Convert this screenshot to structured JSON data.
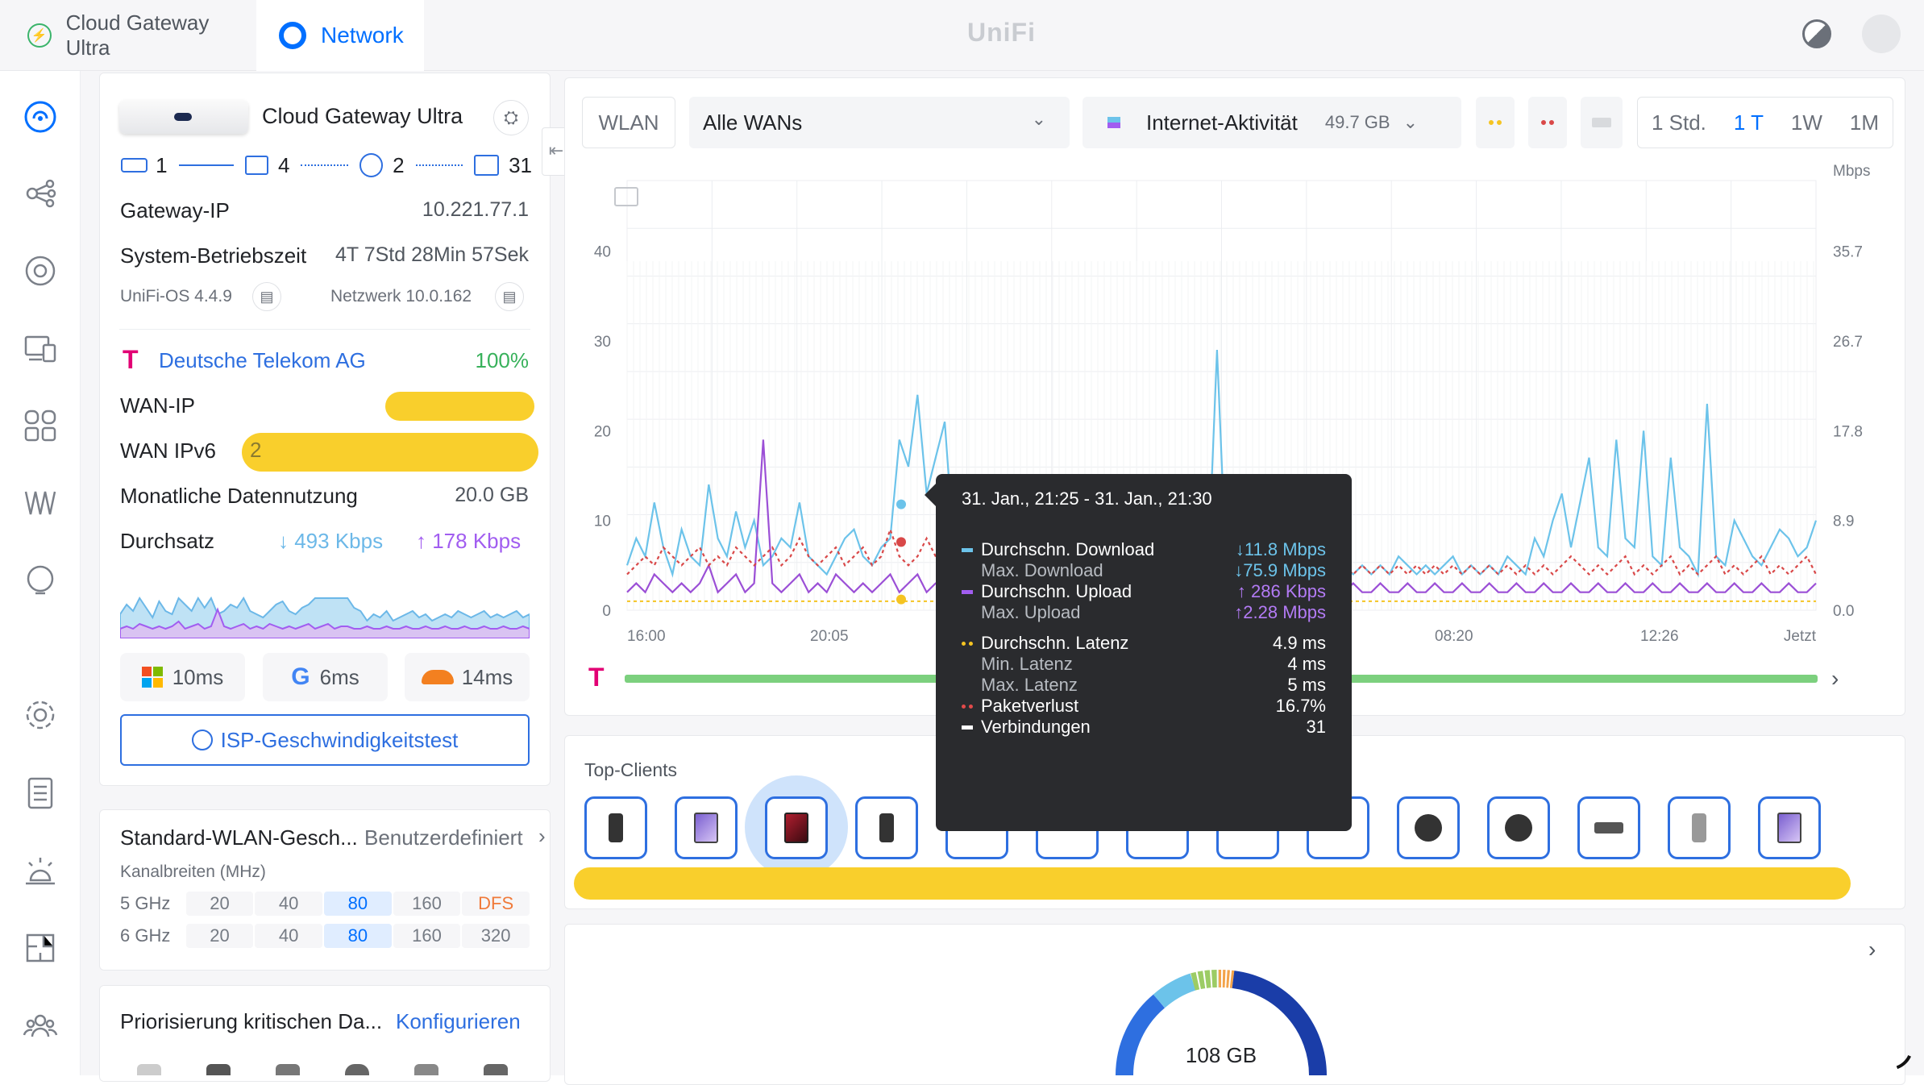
{
  "tabs": {
    "gateway": "Cloud Gateway Ultra",
    "network": "Network"
  },
  "logo": "UniFi",
  "device": {
    "name": "Cloud Gateway Ultra",
    "counts": {
      "wan": "1",
      "switches": "4",
      "aps": "2",
      "clients": "31"
    }
  },
  "info": {
    "gateway_ip_label": "Gateway-IP",
    "gateway_ip": "10.221.77.1",
    "uptime_label": "System-Betriebszeit",
    "uptime": "4T 7Std 28Min 57Sek",
    "os": "UniFi-OS 4.4.9",
    "network_version": "Netzwerk 10.0.162",
    "isp": "Deutsche Telekom AG",
    "isp_pct": "100%",
    "wan_ip_label": "WAN-IP",
    "wan_ipv6_label": "WAN IPv6",
    "wan_ipv6_partial": "2",
    "monthly_label": "Monatliche Datennutzung",
    "monthly": "20.0 GB",
    "throughput_label": "Durchsatz",
    "down": "↓ 493 Kbps",
    "up": "↑ 178 Kbps",
    "lat_ms": "10ms",
    "lat_google": "6ms",
    "lat_cf": "14ms",
    "speedtest": "ISP-Geschwindigkeitstest"
  },
  "wlan": {
    "title": "Standard-WLAN-Gesch...",
    "mode": "Benutzerdefiniert",
    "sub": "Kanalbreiten (MHz)",
    "rows": [
      {
        "band": "5 GHz",
        "cells": [
          "20",
          "40",
          "80",
          "160",
          "DFS"
        ],
        "active": 2
      },
      {
        "band": "6 GHz",
        "cells": [
          "20",
          "40",
          "80",
          "160",
          "320"
        ],
        "active": 2
      }
    ]
  },
  "prio": {
    "title": "Priorisierung kritischen Da...",
    "action": "Konfigurieren"
  },
  "toolbar": {
    "wlan": "WLAN",
    "wans": "Alle WANs",
    "activity": "Internet-Aktivität",
    "activity_total": "49.7 GB",
    "ranges": [
      "1 Std.",
      "1 T",
      "1W",
      "1M"
    ],
    "active_range": 1
  },
  "chart_data": {
    "type": "line",
    "title": "",
    "ylabel_right": "Mbps",
    "yticks_left": [
      "40",
      "30",
      "20",
      "10",
      "0"
    ],
    "yticks_right": [
      "35.7",
      "26.7",
      "17.8",
      "8.9",
      "0.0"
    ],
    "xticks": [
      "16:00",
      "20:05",
      "08:20",
      "12:26",
      "Jetzt"
    ],
    "ylim_left": [
      0,
      45
    ],
    "series": [
      {
        "name": "Durchschn. Download",
        "color": "#6cc3ea",
        "values": [
          5,
          8,
          6,
          12,
          7,
          4,
          9,
          6,
          5,
          14,
          8,
          6,
          11,
          7,
          10,
          5,
          6,
          8,
          7,
          12,
          6,
          5,
          4,
          6,
          8,
          9,
          6,
          5,
          7,
          8,
          19,
          16,
          24,
          13,
          17,
          21,
          7,
          6,
          3,
          5,
          4,
          6,
          3,
          4,
          5,
          6,
          4,
          5,
          3,
          4,
          5,
          4,
          6,
          5,
          4,
          5,
          6,
          4,
          5,
          4,
          5,
          6,
          4,
          5,
          4,
          29,
          5,
          4,
          6,
          5,
          4,
          5,
          4,
          6,
          5,
          4,
          5,
          4,
          6,
          5,
          4,
          5,
          4,
          5,
          4,
          6,
          5,
          4,
          5,
          4,
          5,
          6,
          4,
          5,
          4,
          5,
          4,
          6,
          5,
          4,
          8,
          6,
          10,
          13,
          7,
          12,
          17,
          7,
          6,
          19,
          8,
          7,
          20,
          6,
          5,
          17,
          7,
          6,
          4,
          23,
          6,
          5,
          10,
          8,
          6,
          5,
          7,
          9,
          8,
          6,
          7,
          10
        ]
      },
      {
        "name": "Durchschn. Upload",
        "color": "#9b4fd6",
        "values": [
          2,
          3,
          2,
          4,
          3,
          2,
          3,
          2,
          3,
          5,
          2,
          3,
          4,
          2,
          3,
          19,
          3,
          2,
          3,
          4,
          2,
          3,
          2,
          4,
          3,
          2,
          3,
          2,
          3,
          4,
          2,
          3,
          4,
          2,
          3,
          3,
          2,
          2,
          3,
          2,
          2,
          3,
          2,
          2,
          3,
          2,
          2,
          3,
          2,
          2,
          3,
          2,
          2,
          3,
          2,
          2,
          3,
          2,
          2,
          3,
          2,
          2,
          3,
          2,
          2,
          3,
          2,
          2,
          3,
          2,
          2,
          3,
          2,
          2,
          3,
          2,
          2,
          3,
          2,
          2,
          3,
          2,
          2,
          3,
          2,
          2,
          3,
          2,
          2,
          3,
          2,
          2,
          3,
          2,
          2,
          3,
          2,
          2,
          3,
          2,
          2,
          3,
          2,
          2,
          3,
          2,
          2,
          3,
          2,
          2,
          3,
          2,
          2,
          3,
          2,
          2,
          3,
          2,
          2,
          3,
          2,
          2,
          3,
          2,
          2,
          3,
          2,
          2,
          3,
          2,
          2,
          3
        ]
      },
      {
        "name": "Max. Download",
        "color": "#d94848",
        "values": [
          4,
          5,
          6,
          5,
          7,
          6,
          5,
          6,
          7,
          5,
          6,
          5,
          7,
          6,
          5,
          6,
          7,
          5,
          6,
          8,
          6,
          5,
          6,
          7,
          5,
          6,
          7,
          5,
          6,
          9,
          6,
          5,
          6,
          8,
          6,
          5,
          6,
          5,
          4,
          5,
          4,
          5,
          4,
          5,
          4,
          5,
          4,
          5,
          4,
          5,
          4,
          5,
          4,
          5,
          4,
          5,
          4,
          5,
          4,
          5,
          4,
          5,
          4,
          5,
          4,
          5,
          4,
          5,
          4,
          5,
          4,
          5,
          4,
          5,
          4,
          5,
          4,
          5,
          4,
          5,
          4,
          5,
          4,
          5,
          4,
          5,
          4,
          5,
          4,
          5,
          4,
          5,
          4,
          5,
          4,
          5,
          4,
          5,
          4,
          5,
          4,
          5,
          4,
          5,
          6,
          5,
          4,
          5,
          4,
          5,
          6,
          4,
          5,
          4,
          5,
          6,
          4,
          5,
          4,
          5,
          6,
          4,
          5,
          4,
          5,
          6,
          4,
          5,
          4,
          5,
          6,
          4
        ]
      },
      {
        "name": "Durchschn. Latenz",
        "color": "#f5c422",
        "values": [
          1,
          1,
          1,
          1,
          1,
          1,
          1,
          1,
          1,
          1,
          1,
          1,
          1,
          1,
          1,
          1,
          1,
          1,
          1,
          1,
          1,
          1,
          1,
          1,
          1,
          1,
          1,
          1,
          1,
          1,
          1,
          1,
          1,
          1,
          1,
          1,
          1,
          1,
          1,
          1,
          1,
          1,
          1,
          1,
          1,
          1,
          1,
          1,
          1,
          1,
          1,
          1,
          1,
          1,
          1,
          1,
          1,
          1,
          1,
          1,
          1,
          1,
          1,
          1,
          1,
          1,
          1,
          1,
          1,
          1,
          1,
          1,
          1,
          1,
          1,
          1,
          1,
          1,
          1,
          1,
          1,
          1,
          1,
          1,
          1,
          1,
          1,
          1,
          1,
          1,
          1,
          1,
          1,
          1,
          1,
          1,
          1,
          1,
          1,
          1,
          1,
          1,
          1,
          1,
          1,
          1,
          1,
          1,
          1,
          1,
          1,
          1,
          1,
          1,
          1,
          1,
          1,
          1,
          1,
          1,
          1,
          1,
          1,
          1,
          1,
          1,
          1,
          1,
          1,
          1,
          1,
          1
        ]
      }
    ]
  },
  "tooltip": {
    "title": "31. Jan., 21:25 - 31. Jan., 21:30",
    "rows": [
      {
        "label": "Durchschn. Download",
        "value": "↓11.8 Mbps",
        "color": "#6cc3ea",
        "vcolor": "#6cc3ea",
        "bullet": true
      },
      {
        "label": "Max. Download",
        "value": "↓75.9 Mbps",
        "color": "",
        "vcolor": "#6cc3ea",
        "bullet": false
      },
      {
        "label": "Durchschn. Upload",
        "value": "↑ 286 Kbps",
        "color": "#a15df0",
        "vcolor": "#b37bf5",
        "bullet": true
      },
      {
        "label": "Max. Upload",
        "value": "↑2.28 Mbps",
        "color": "",
        "vcolor": "#b37bf5",
        "bullet": false
      },
      {
        "label": "Durchschn. Latenz",
        "value": "4.9 ms",
        "color": "#f5c422",
        "vcolor": "#ffffff",
        "bullet": true
      },
      {
        "label": "Min. Latenz",
        "value": "4 ms",
        "color": "",
        "vcolor": "#ffffff",
        "bullet": false
      },
      {
        "label": "Max. Latenz",
        "value": "5 ms",
        "color": "",
        "vcolor": "#ffffff",
        "bullet": false
      },
      {
        "label": "Paketverlust",
        "value": "16.7%",
        "color": "#e24a4a",
        "vcolor": "#ffffff",
        "bullet": true
      },
      {
        "label": "Verbindungen",
        "value": "31",
        "color": "#ffffff",
        "vcolor": "#ffffff",
        "bullet": true
      }
    ]
  },
  "top_clients": {
    "title": "Top-Clients"
  },
  "donut": {
    "total": "108 GB"
  }
}
